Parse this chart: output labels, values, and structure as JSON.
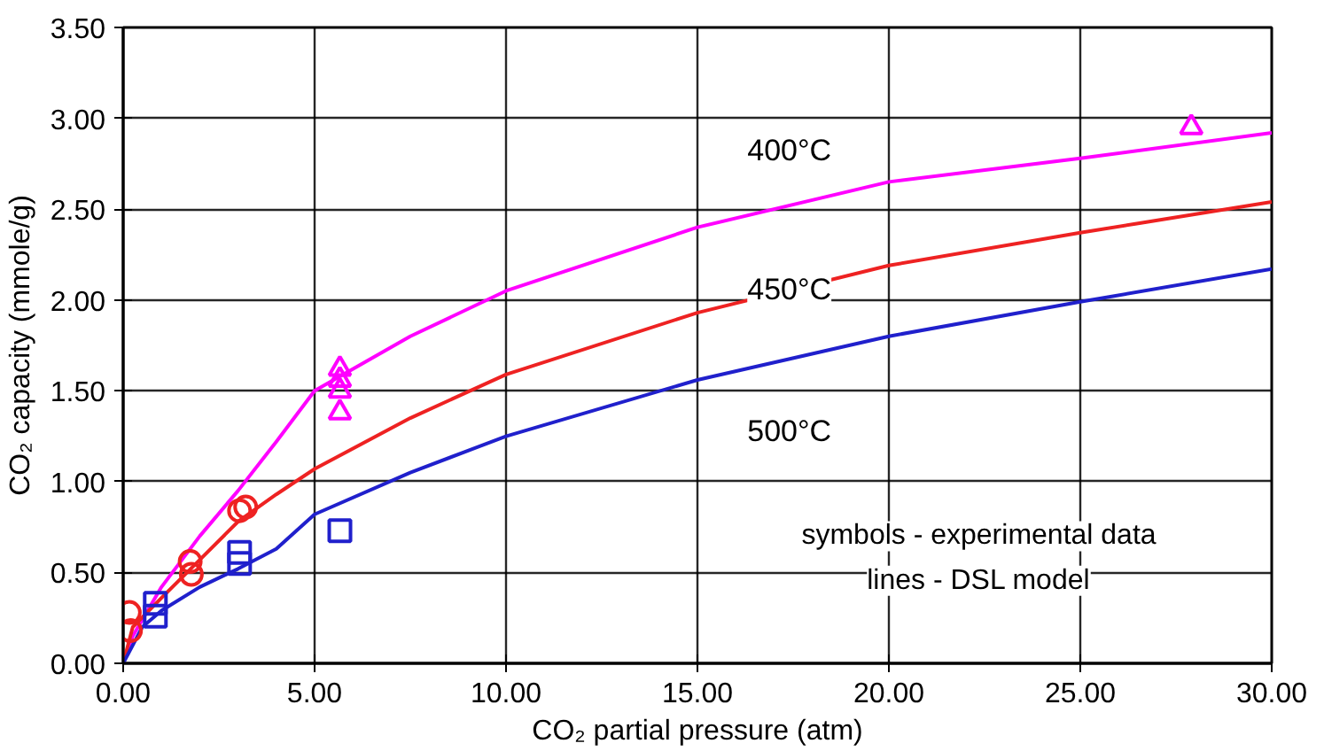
{
  "chart_data": {
    "type": "line",
    "xlabel": "CO₂ partial pressure (atm)",
    "ylabel": "CO₂ capacity (mmole/g)",
    "xlim": [
      0,
      30
    ],
    "ylim": [
      0,
      3.5
    ],
    "xticks": [
      {
        "value": 0,
        "label": "0.00"
      },
      {
        "value": 5,
        "label": "5.00"
      },
      {
        "value": 10,
        "label": "10.00"
      },
      {
        "value": 15,
        "label": "15.00"
      },
      {
        "value": 20,
        "label": "20.00"
      },
      {
        "value": 25,
        "label": "25.00"
      },
      {
        "value": 30,
        "label": "30.00"
      }
    ],
    "yticks": [
      {
        "value": 0,
        "label": "0.00"
      },
      {
        "value": 0.5,
        "label": "0.50"
      },
      {
        "value": 1,
        "label": "1.00"
      },
      {
        "value": 1.5,
        "label": "1.50"
      },
      {
        "value": 2,
        "label": "2.00"
      },
      {
        "value": 2.5,
        "label": "2.50"
      },
      {
        "value": 3,
        "label": "3.00"
      },
      {
        "value": 3.5,
        "label": "3.50"
      }
    ],
    "grid": true,
    "series": [
      {
        "name": "400°C",
        "color": "#ff00ff",
        "x": [
          0,
          0.25,
          1,
          2,
          3,
          4,
          5,
          7.5,
          10,
          15,
          20,
          25,
          30
        ],
        "values": [
          0,
          0.15,
          0.42,
          0.7,
          0.95,
          1.22,
          1.5,
          1.8,
          2.05,
          2.4,
          2.65,
          2.78,
          2.92
        ]
      },
      {
        "name": "450°C",
        "color": "#ee2222",
        "x": [
          0,
          0.25,
          1,
          2,
          3,
          4,
          5,
          7.5,
          10,
          15,
          20,
          25,
          30
        ],
        "values": [
          0,
          0.2,
          0.36,
          0.57,
          0.78,
          0.93,
          1.07,
          1.35,
          1.59,
          1.93,
          2.19,
          2.37,
          2.54
        ]
      },
      {
        "name": "500°C",
        "color": "#2020cc",
        "x": [
          0,
          0.5,
          1,
          2,
          3,
          4,
          5,
          7.5,
          10,
          15,
          20,
          25,
          30
        ],
        "values": [
          0,
          0.2,
          0.29,
          0.42,
          0.52,
          0.63,
          0.82,
          1.05,
          1.25,
          1.56,
          1.8,
          1.99,
          2.17
        ]
      },
      {
        "type": "scatter",
        "marker": "triangle",
        "color": "#ff00ff",
        "x": [
          5.66,
          5.66,
          5.66,
          5.66,
          27.9
        ],
        "values": [
          1.62,
          1.56,
          1.5,
          1.38,
          2.95
        ]
      },
      {
        "type": "scatter",
        "marker": "circle",
        "color": "#ee2222",
        "x": [
          0.16,
          0.19,
          1.75,
          1.78,
          3.04,
          3.2
        ],
        "values": [
          0.28,
          0.18,
          0.56,
          0.49,
          0.84,
          0.86
        ]
      },
      {
        "type": "scatter",
        "marker": "square",
        "color": "#2020cc",
        "x": [
          0.84,
          0.84,
          3.04,
          3.04,
          5.66
        ],
        "values": [
          0.33,
          0.26,
          0.61,
          0.55,
          0.73
        ]
      }
    ],
    "annotations": [
      "symbols - experimental data",
      "lines - DSL model"
    ]
  }
}
